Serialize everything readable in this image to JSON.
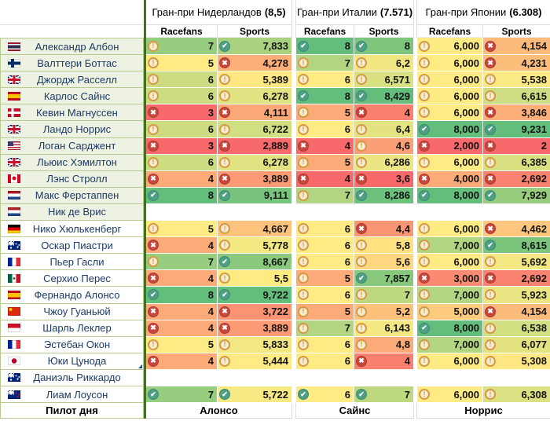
{
  "table": {
    "gps": [
      {
        "title": "Гран-при Нидерландов",
        "score": "(8,5)"
      },
      {
        "title": "Гран-при Италии",
        "score": "(7.571)"
      },
      {
        "title": "Гран-при Японии",
        "score": "(6.308)"
      }
    ],
    "col_headers": [
      "Racefans",
      "Sports"
    ],
    "drivers": [
      {
        "name": "Александр Албон",
        "flag": "thailand",
        "shade": true,
        "cells": [
          [
            "warn",
            "7"
          ],
          [
            "check",
            "7,833"
          ],
          [
            "check",
            "8"
          ],
          [
            "check",
            "8"
          ],
          [
            "warn",
            "6,000"
          ],
          [
            "cross",
            "4,154"
          ]
        ]
      },
      {
        "name": "Валттери Боттас",
        "flag": "finland",
        "shade": true,
        "cells": [
          [
            "warn",
            "5"
          ],
          [
            "cross",
            "4,278"
          ],
          [
            "warn",
            "7"
          ],
          [
            "warn",
            "6,2"
          ],
          [
            "warn",
            "6,000"
          ],
          [
            "cross",
            "4,231"
          ]
        ]
      },
      {
        "name": "Джордж Расселл",
        "flag": "uk",
        "shade": true,
        "cells": [
          [
            "warn",
            "6"
          ],
          [
            "warn",
            "5,389"
          ],
          [
            "warn",
            "6"
          ],
          [
            "warn",
            "6,571"
          ],
          [
            "warn",
            "6,000"
          ],
          [
            "warn",
            "5,538"
          ]
        ]
      },
      {
        "name": "Карлос Сайнс",
        "flag": "spain",
        "shade": true,
        "cells": [
          [
            "warn",
            "6"
          ],
          [
            "warn",
            "6,278"
          ],
          [
            "check",
            "8"
          ],
          [
            "check",
            "8,429"
          ],
          [
            "warn",
            "6,000"
          ],
          [
            "warn",
            "6,615"
          ]
        ]
      },
      {
        "name": "Кевин Магнуссен",
        "flag": "denmark",
        "shade": true,
        "cells": [
          [
            "cross",
            "3"
          ],
          [
            "cross",
            "4,111"
          ],
          [
            "warn",
            "5"
          ],
          [
            "cross",
            "4"
          ],
          [
            "warn",
            "6,000"
          ],
          [
            "cross",
            "3,846"
          ]
        ]
      },
      {
        "name": "Ландо Норрис",
        "flag": "uk",
        "shade": true,
        "cells": [
          [
            "warn",
            "6"
          ],
          [
            "warn",
            "6,722"
          ],
          [
            "warn",
            "6"
          ],
          [
            "warn",
            "6,4"
          ],
          [
            "check",
            "8,000"
          ],
          [
            "check",
            "9,231"
          ]
        ]
      },
      {
        "name": "Логан Сарджент",
        "flag": "usa",
        "shade": true,
        "cells": [
          [
            "cross",
            "3"
          ],
          [
            "cross",
            "2,889"
          ],
          [
            "cross",
            "4"
          ],
          [
            "warn",
            "4,6"
          ],
          [
            "cross",
            "2,000"
          ],
          [
            "cross",
            "2"
          ]
        ]
      },
      {
        "name": "Льюис Хэмилтон",
        "flag": "uk",
        "shade": true,
        "cells": [
          [
            "warn",
            "6"
          ],
          [
            "warn",
            "6,278"
          ],
          [
            "warn",
            "5"
          ],
          [
            "warn",
            "6,286"
          ],
          [
            "warn",
            "6,000"
          ],
          [
            "warn",
            "6,385"
          ]
        ]
      },
      {
        "name": "Лэнс Стролл",
        "flag": "canada",
        "shade": true,
        "cells": [
          [
            "cross",
            "4"
          ],
          [
            "cross",
            "3,889"
          ],
          [
            "cross",
            "4"
          ],
          [
            "cross",
            "3,6"
          ],
          [
            "cross",
            "4,000"
          ],
          [
            "cross",
            "2,692"
          ]
        ]
      },
      {
        "name": "Макс Ферстаппен",
        "flag": "netherlands",
        "shade": true,
        "cells": [
          [
            "check",
            "8"
          ],
          [
            "check",
            "9,111"
          ],
          [
            "warn",
            "7"
          ],
          [
            "check",
            "8,286"
          ],
          [
            "check",
            "8,000"
          ],
          [
            "check",
            "7,929"
          ]
        ]
      },
      {
        "name": "Ник де Врис",
        "flag": "netherlands",
        "shade": true,
        "cells": [
          null,
          null,
          null,
          null,
          null,
          null
        ]
      },
      {
        "name": "Нико Хюлькенберг",
        "flag": "germany",
        "shade": false,
        "cells": [
          [
            "warn",
            "5"
          ],
          [
            "warn",
            "4,667"
          ],
          [
            "warn",
            "6"
          ],
          [
            "cross",
            "4,4"
          ],
          [
            "warn",
            "6,000"
          ],
          [
            "cross",
            "4,462"
          ]
        ]
      },
      {
        "name": "Оскар Пиастри",
        "flag": "australia",
        "shade": false,
        "cells": [
          [
            "cross",
            "4"
          ],
          [
            "warn",
            "5,778"
          ],
          [
            "warn",
            "6"
          ],
          [
            "warn",
            "5,8"
          ],
          [
            "warn",
            "7,000"
          ],
          [
            "check",
            "8,615"
          ]
        ]
      },
      {
        "name": "Пьер Гасли",
        "flag": "france",
        "shade": false,
        "cells": [
          [
            "warn",
            "7"
          ],
          [
            "check",
            "8,667"
          ],
          [
            "warn",
            "6"
          ],
          [
            "warn",
            "5,6"
          ],
          [
            "warn",
            "6,000"
          ],
          [
            "warn",
            "5,692"
          ]
        ]
      },
      {
        "name": "Серхио Перес",
        "flag": "mexico",
        "shade": false,
        "cells": [
          [
            "cross",
            "4"
          ],
          [
            "warn",
            "5,5"
          ],
          [
            "warn",
            "5"
          ],
          [
            "check",
            "7,857"
          ],
          [
            "cross",
            "3,000"
          ],
          [
            "cross",
            "2,692"
          ]
        ]
      },
      {
        "name": "Фернандо Алонсо",
        "flag": "spain",
        "shade": false,
        "cells": [
          [
            "check",
            "8"
          ],
          [
            "check",
            "9,722"
          ],
          [
            "warn",
            "6"
          ],
          [
            "warn",
            "7"
          ],
          [
            "warn",
            "7,000"
          ],
          [
            "warn",
            "5,923"
          ]
        ]
      },
      {
        "name": "Чжоу Гуаньюй",
        "flag": "china",
        "shade": false,
        "cells": [
          [
            "cross",
            "4"
          ],
          [
            "cross",
            "3,722"
          ],
          [
            "warn",
            "5"
          ],
          [
            "warn",
            "5,2"
          ],
          [
            "warn",
            "5,000"
          ],
          [
            "cross",
            "4,154"
          ]
        ]
      },
      {
        "name": "Шарль Леклер",
        "flag": "monaco",
        "shade": false,
        "cells": [
          [
            "cross",
            "4"
          ],
          [
            "cross",
            "3,889"
          ],
          [
            "warn",
            "7"
          ],
          [
            "warn",
            "6,143"
          ],
          [
            "check",
            "8,000"
          ],
          [
            "warn",
            "6,538"
          ]
        ]
      },
      {
        "name": "Эстебан Окон",
        "flag": "france",
        "shade": false,
        "cells": [
          [
            "warn",
            "5"
          ],
          [
            "warn",
            "5,833"
          ],
          [
            "warn",
            "6"
          ],
          [
            "warn",
            "4,8"
          ],
          [
            "warn",
            "7,000"
          ],
          [
            "warn",
            "6,077"
          ]
        ]
      },
      {
        "name": "Юки Цунода",
        "flag": "japan",
        "shade": false,
        "note": true,
        "cells": [
          [
            "cross",
            "4"
          ],
          [
            "warn",
            "5,444"
          ],
          [
            "warn",
            "6"
          ],
          [
            "cross",
            "4"
          ],
          [
            "warn",
            "6,000"
          ],
          [
            "warn",
            "5,308"
          ]
        ]
      },
      {
        "name": "Даниэль Риккардо",
        "flag": "australia",
        "shade": false,
        "cells": [
          null,
          null,
          null,
          null,
          null,
          null
        ]
      },
      {
        "name": "Лиам Лоусон",
        "flag": "newzealand",
        "shade": false,
        "cells": [
          [
            "check",
            "7"
          ],
          [
            "check",
            "5,722"
          ],
          [
            "check",
            "6"
          ],
          [
            "check",
            "7"
          ],
          [
            "warn",
            "6,000"
          ],
          [
            "warn",
            "6,308"
          ]
        ]
      }
    ],
    "footer": {
      "label": "Пилот дня",
      "winners": [
        "Алонсо",
        "Сайнс",
        "Норрис"
      ]
    }
  },
  "icons": {
    "warn": "exclamation-circle",
    "check": "check-circle",
    "cross": "x-circle"
  },
  "colors": {
    "cell_scale_low": "#F8696B",
    "cell_scale_mid": "#FFEB84",
    "cell_scale_high": "#63BE7B",
    "separator_green": "#38761D",
    "name_cell_border": "#B5CB8F",
    "name_cell_shaded_bg": "#EDF2E2",
    "name_text": "#1D3B66",
    "icon_warn": "#D49A44",
    "icon_check": "#4E9F86",
    "icon_cross": "#C7473D"
  }
}
